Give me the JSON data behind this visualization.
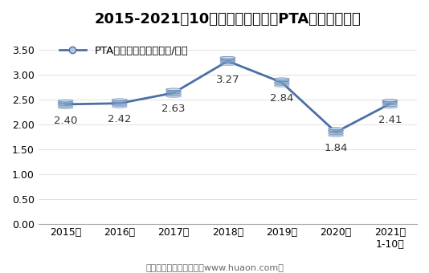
{
  "title": "2015-2021年10月郑州商品交易所PTA期货成交均价",
  "legend_label": "PTA期货成交均价（万元/手）",
  "x_labels": [
    "2015年",
    "2016年",
    "2017年",
    "2018年",
    "2019年",
    "2020年",
    "2021年\n1-10月"
  ],
  "y_values": [
    2.4,
    2.42,
    2.63,
    3.27,
    2.84,
    1.84,
    2.41
  ],
  "data_labels": [
    "2.40",
    "2.42",
    "2.63",
    "3.27",
    "2.84",
    "1.84",
    "2.41"
  ],
  "label_offsets": [
    -0.22,
    -0.22,
    -0.22,
    -0.28,
    -0.22,
    -0.22,
    -0.22
  ],
  "ylim": [
    0,
    3.85
  ],
  "yticks": [
    0.0,
    0.5,
    1.0,
    1.5,
    2.0,
    2.5,
    3.0,
    3.5
  ],
  "line_color": "#4a6fa5",
  "marker_face_color": "#b8c9e0",
  "marker_edge_color": "#4a6fa5",
  "background_color": "#ffffff",
  "footer_text": "制图：华经产业研究院（www.huaon.com）",
  "title_fontsize": 13,
  "label_fontsize": 9.5,
  "tick_fontsize": 9,
  "footer_fontsize": 8
}
